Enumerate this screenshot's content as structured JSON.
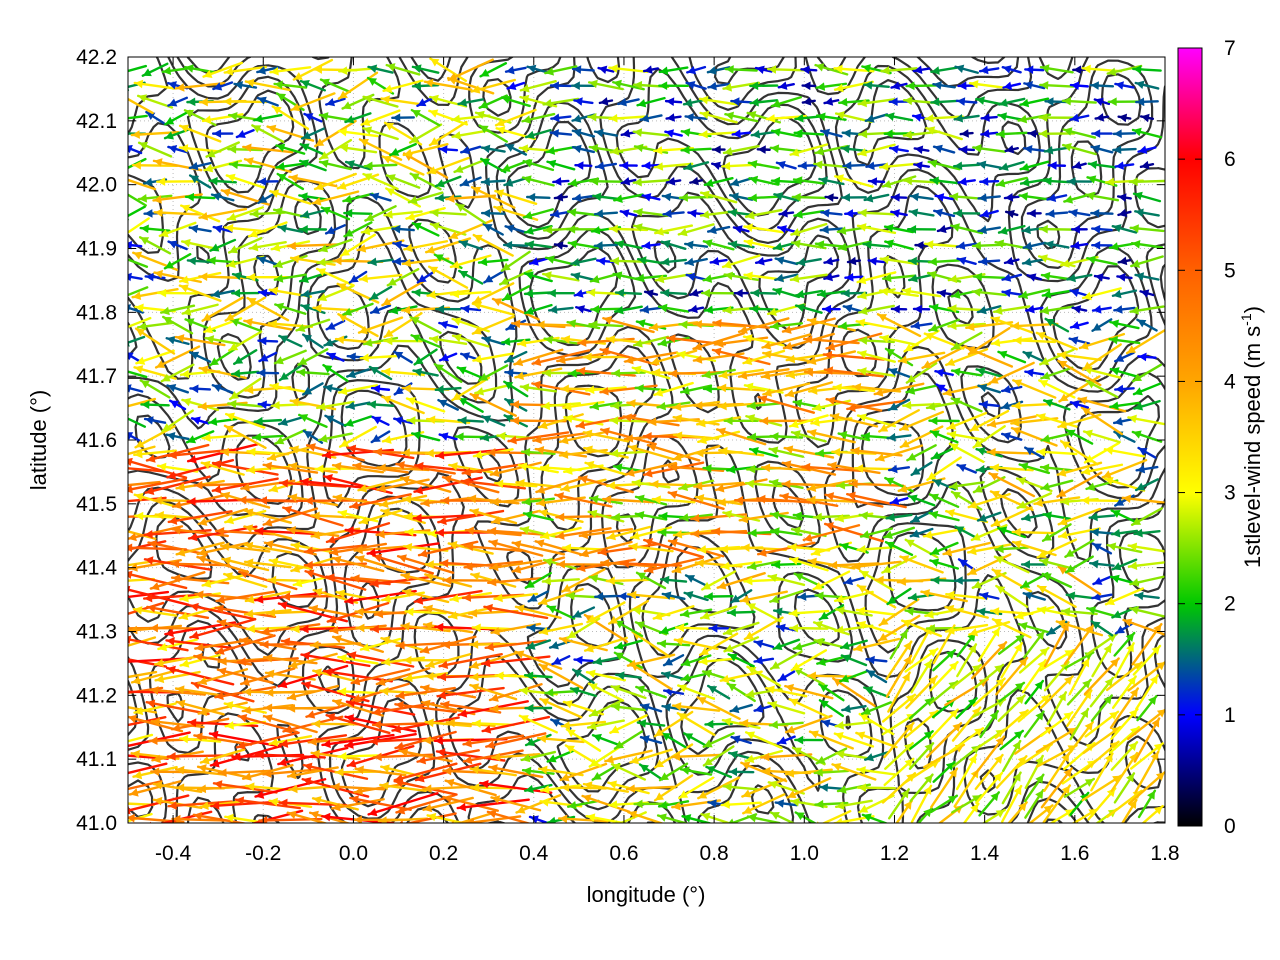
{
  "chart_data": {
    "type": "vector-field",
    "title": "",
    "xlabel": "longitude (°)",
    "ylabel": "latitude (°)",
    "xlim": [
      -0.5,
      1.8
    ],
    "ylim": [
      41.0,
      42.2
    ],
    "x_ticks": [
      -0.4,
      -0.2,
      0.0,
      0.2,
      0.4,
      0.6,
      0.8,
      1.0,
      1.2,
      1.4,
      1.6,
      1.8
    ],
    "x_tick_labels": [
      "-0.4",
      "-0.2",
      "0.0",
      "0.2",
      "0.4",
      "0.6",
      "0.8",
      "1.0",
      "1.2",
      "1.4",
      "1.6",
      "1.8"
    ],
    "y_ticks": [
      41.0,
      41.1,
      41.2,
      41.3,
      41.4,
      41.5,
      41.6,
      41.7,
      41.8,
      41.9,
      42.0,
      42.1,
      42.2
    ],
    "y_tick_labels": [
      "41.0",
      "41.1",
      "41.2",
      "41.3",
      "41.4",
      "41.5",
      "41.6",
      "41.7",
      "41.8",
      "41.9",
      "42.0",
      "42.1",
      "42.2"
    ],
    "grid": "dotted",
    "colorbar": {
      "label": "1stlevel-wind speed (m s",
      "label_sup": "-1",
      "label_end": ")",
      "range": [
        0,
        7
      ],
      "ticks": [
        0,
        1,
        2,
        3,
        4,
        5,
        6,
        7
      ],
      "tick_labels": [
        "0",
        "1",
        "2",
        "3",
        "4",
        "5",
        "6",
        "7"
      ],
      "stops": [
        "#000000",
        "#0000ff",
        "#00e600",
        "#ffff00",
        "#ffa500",
        "#ff0000",
        "#ff00ff"
      ]
    },
    "vectors": {
      "description": "wind vectors on a regular grid, colored by speed",
      "regions": [
        {
          "lon_range": [
            -0.5,
            0.4
          ],
          "lat_range": [
            41.0,
            41.6
          ],
          "direction": "west",
          "speed_range": [
            3,
            6
          ]
        },
        {
          "lon_range": [
            0.4,
            1.2
          ],
          "lat_range": [
            41.4,
            41.9
          ],
          "direction": "west",
          "speed_range": [
            2,
            5
          ]
        },
        {
          "lon_range": [
            0.4,
            1.8
          ],
          "lat_range": [
            41.8,
            42.2
          ],
          "direction": "west",
          "speed_range": [
            0.5,
            3
          ]
        },
        {
          "lon_range": [
            1.2,
            1.8
          ],
          "lat_range": [
            41.0,
            41.3
          ],
          "direction": "north-east",
          "speed_range": [
            2,
            4
          ]
        }
      ]
    },
    "contours": {
      "description": "terrain elevation contour lines",
      "color": "#333333"
    }
  }
}
